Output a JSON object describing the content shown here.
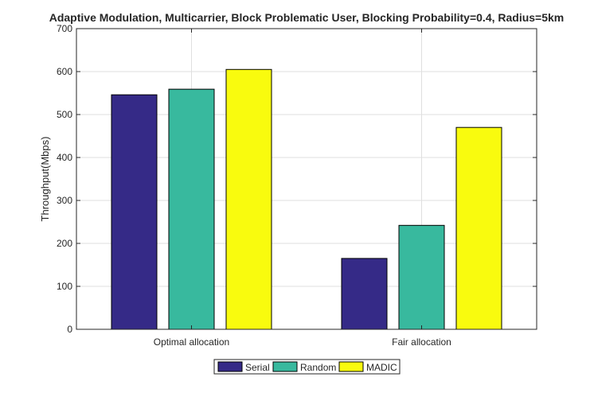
{
  "chart_data": {
    "type": "bar",
    "title": "Adaptive Modulation, Multicarrier, Block Problematic User, Blocking Probability=0.4, Radius=5km",
    "xlabel": "",
    "ylabel": "Throughput(Mbps)",
    "ylim": [
      0,
      700
    ],
    "yticks": [
      0,
      100,
      200,
      300,
      400,
      500,
      600,
      700
    ],
    "categories": [
      "Optimal allocation",
      "Fair allocation"
    ],
    "series": [
      {
        "name": "Serial",
        "color": "#352a87",
        "values": [
          546,
          165
        ]
      },
      {
        "name": "Random",
        "color": "#38b99e",
        "values": [
          559,
          242
        ]
      },
      {
        "name": "MADIC",
        "color": "#f9fb0e",
        "values": [
          605,
          470
        ]
      }
    ],
    "grid": true,
    "legend": "bottom-center"
  }
}
